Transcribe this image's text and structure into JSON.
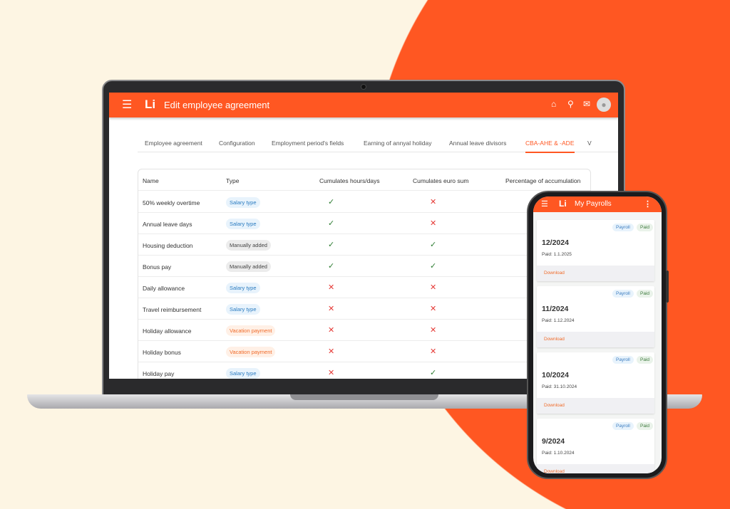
{
  "colors": {
    "accent": "#ff5722",
    "background": "#fdf5e3",
    "check": "#2e7d32",
    "cross": "#e53935"
  },
  "desktop": {
    "logo": "Li",
    "title": "Edit employee agreement",
    "icons": [
      "menu-icon",
      "home-icon",
      "search-icon",
      "mail-icon",
      "account-icon"
    ],
    "tabs": [
      {
        "label": "Employee agreement",
        "active": false
      },
      {
        "label": "Configuration",
        "active": false
      },
      {
        "label": "Employment period's fields",
        "active": false
      },
      {
        "label": "Earning of annyal holiday",
        "active": false
      },
      {
        "label": "Annual leave divisors",
        "active": false
      },
      {
        "label": "CBA-AHE & -ADE",
        "active": true
      },
      {
        "label": "V",
        "active": false
      }
    ],
    "table": {
      "headers": [
        "Name",
        "Type",
        "Cumulates hours/days",
        "Cumulates euro sum",
        "Percentage of accumulation"
      ],
      "rows": [
        {
          "name": "50% weekly overtime",
          "type": "Salary type",
          "hours": true,
          "euro": false
        },
        {
          "name": "Annual leave days",
          "type": "Salary type",
          "hours": true,
          "euro": false
        },
        {
          "name": "Housing deduction",
          "type": "Manually added",
          "hours": true,
          "euro": true
        },
        {
          "name": "Bonus pay",
          "type": "Manually added",
          "hours": true,
          "euro": true
        },
        {
          "name": "Daily allowance",
          "type": "Salary type",
          "hours": false,
          "euro": false
        },
        {
          "name": "Travel reimbursement",
          "type": "Salary type",
          "hours": false,
          "euro": false
        },
        {
          "name": "Holiday allowance",
          "type": "Vacation payment",
          "hours": false,
          "euro": false
        },
        {
          "name": "Holiday bonus",
          "type": "Vacation payment",
          "hours": false,
          "euro": false
        },
        {
          "name": "Holiday pay",
          "type": "Salary type",
          "hours": false,
          "euro": true
        }
      ]
    }
  },
  "mobile": {
    "logo": "Li",
    "title": "My Payrolls",
    "cards": [
      {
        "period": "12/2024",
        "paid": "Paid: 1.1.2025",
        "tags": [
          "Payroll",
          "Paid"
        ],
        "action": "Download"
      },
      {
        "period": "11/2024",
        "paid": "Paid: 1.12.2024",
        "tags": [
          "Payroll",
          "Paid"
        ],
        "action": "Download"
      },
      {
        "period": "10/2024",
        "paid": "Paid: 31.10.2024",
        "tags": [
          "Payroll",
          "Paid"
        ],
        "action": "Download"
      },
      {
        "period": "9/2024",
        "paid": "Paid: 1.10.2024",
        "tags": [
          "Payroll",
          "Paid"
        ],
        "action": "Download"
      }
    ]
  }
}
